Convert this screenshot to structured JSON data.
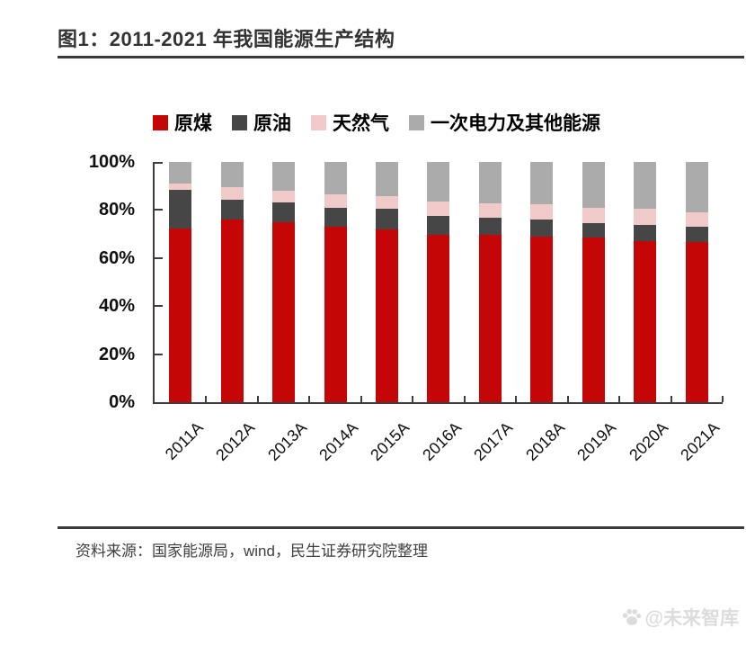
{
  "figure": {
    "title": "图1：2011-2021 年我国能源生产结构",
    "source": "资料来源：国家能源局，wind，民生证券研究院整理",
    "watermark": "@未来智库"
  },
  "chart_data": {
    "type": "bar",
    "stacked": true,
    "title": "2011-2021 年我国能源生产结构",
    "categories": [
      "2011A",
      "2012A",
      "2013A",
      "2014A",
      "2015A",
      "2016A",
      "2017A",
      "2018A",
      "2019A",
      "2020A",
      "2021A"
    ],
    "series": [
      {
        "name": "原煤",
        "color": "#c40606",
        "values": [
          72.3,
          76.2,
          74.8,
          73.0,
          72.0,
          69.5,
          69.6,
          68.9,
          68.4,
          67.0,
          66.5
        ]
      },
      {
        "name": "原油",
        "color": "#464646",
        "values": [
          16.0,
          8.2,
          8.4,
          8.0,
          8.4,
          8.0,
          7.3,
          7.0,
          6.1,
          6.9,
          6.5
        ]
      },
      {
        "name": "天然气",
        "color": "#f0c9c9",
        "values": [
          2.7,
          5.0,
          5.0,
          5.6,
          5.5,
          6.0,
          6.0,
          6.5,
          6.5,
          6.6,
          6.1
        ]
      },
      {
        "name": "一次电力及其他能源",
        "color": "#ababab",
        "values": [
          9.0,
          10.6,
          11.8,
          13.4,
          14.1,
          16.5,
          17.1,
          17.6,
          19.0,
          19.5,
          20.9
        ]
      }
    ],
    "series_slugs": [
      "coal",
      "oil",
      "gas",
      "other"
    ],
    "xlabel": "",
    "ylabel": "",
    "ylim": [
      0,
      100
    ],
    "yticks": [
      "0%",
      "20%",
      "40%",
      "60%",
      "80%",
      "100%"
    ],
    "grid": false,
    "legend_position": "top",
    "bar_unit": "percent-share"
  }
}
